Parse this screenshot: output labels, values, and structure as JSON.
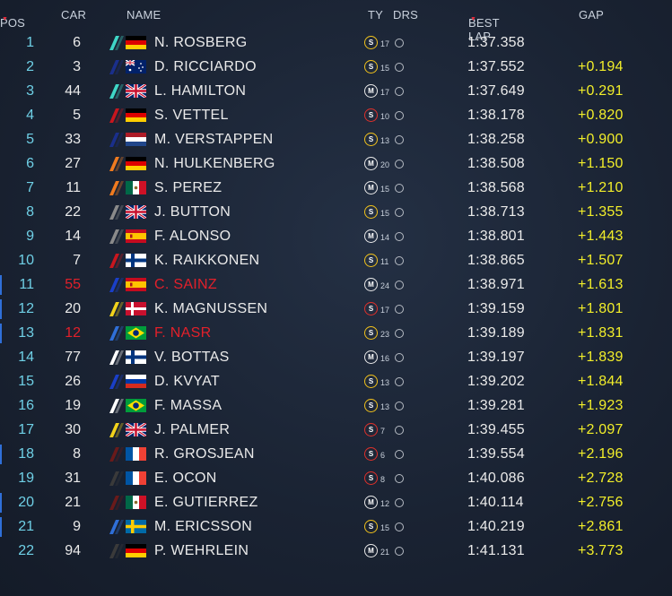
{
  "header": {
    "pos": "POS",
    "car": "CAR",
    "name": "NAME",
    "ty": "TY",
    "drs": "DRS",
    "best_lap": "BEST LAP",
    "gap": "GAP"
  },
  "colors": {
    "pos": "#6fd0e6",
    "gap": "#f2ee2a",
    "flagged": "#e2202a",
    "tyre_soft": "#f2c21b",
    "tyre_medium": "#eaeaea",
    "tyre_supersoft": "#e0302a"
  },
  "rows": [
    {
      "pos": "1",
      "car": "6",
      "name": "N. ROSBERG",
      "team_color": "#3fd6c6",
      "flag": "germany",
      "tyre": "S",
      "tyre_type": "soft",
      "tyre_laps": "17",
      "lap": "1:37.358",
      "gap": "",
      "highlight": false,
      "red": false
    },
    {
      "pos": "2",
      "car": "3",
      "name": "D. RICCIARDO",
      "team_color": "#1a2f8c",
      "flag": "australia",
      "tyre": "S",
      "tyre_type": "soft",
      "tyre_laps": "15",
      "lap": "1:37.552",
      "gap": "+0.194",
      "highlight": false,
      "red": false
    },
    {
      "pos": "3",
      "car": "44",
      "name": "L. HAMILTON",
      "team_color": "#3fd6c6",
      "flag": "uk",
      "tyre": "M",
      "tyre_type": "medium",
      "tyre_laps": "17",
      "lap": "1:37.649",
      "gap": "+0.291",
      "highlight": false,
      "red": false
    },
    {
      "pos": "4",
      "car": "5",
      "name": "S. VETTEL",
      "team_color": "#c8161e",
      "flag": "germany",
      "tyre": "S",
      "tyre_type": "supersoft",
      "tyre_laps": "10",
      "lap": "1:38.178",
      "gap": "+0.820",
      "highlight": false,
      "red": false
    },
    {
      "pos": "5",
      "car": "33",
      "name": "M. VERSTAPPEN",
      "team_color": "#1a2f8c",
      "flag": "netherlands",
      "tyre": "S",
      "tyre_type": "soft",
      "tyre_laps": "13",
      "lap": "1:38.258",
      "gap": "+0.900",
      "highlight": false,
      "red": false
    },
    {
      "pos": "6",
      "car": "27",
      "name": "N. HULKENBERG",
      "team_color": "#f07b1f",
      "flag": "germany",
      "tyre": "M",
      "tyre_type": "medium",
      "tyre_laps": "20",
      "lap": "1:38.508",
      "gap": "+1.150",
      "highlight": false,
      "red": false
    },
    {
      "pos": "7",
      "car": "11",
      "name": "S. PEREZ",
      "team_color": "#f07b1f",
      "flag": "mexico",
      "tyre": "M",
      "tyre_type": "medium",
      "tyre_laps": "15",
      "lap": "1:38.568",
      "gap": "+1.210",
      "highlight": false,
      "red": false
    },
    {
      "pos": "8",
      "car": "22",
      "name": "J. BUTTON",
      "team_color": "#8a8a8a",
      "flag": "uk",
      "tyre": "S",
      "tyre_type": "soft",
      "tyre_laps": "15",
      "lap": "1:38.713",
      "gap": "+1.355",
      "highlight": false,
      "red": false
    },
    {
      "pos": "9",
      "car": "14",
      "name": "F. ALONSO",
      "team_color": "#8a8a8a",
      "flag": "spain",
      "tyre": "M",
      "tyre_type": "medium",
      "tyre_laps": "14",
      "lap": "1:38.801",
      "gap": "+1.443",
      "highlight": false,
      "red": false
    },
    {
      "pos": "10",
      "car": "7",
      "name": "K. RAIKKONEN",
      "team_color": "#c8161e",
      "flag": "finland",
      "tyre": "S",
      "tyre_type": "soft",
      "tyre_laps": "11",
      "lap": "1:38.865",
      "gap": "+1.507",
      "highlight": false,
      "red": false
    },
    {
      "pos": "11",
      "car": "55",
      "name": "C. SAINZ",
      "team_color": "#1a3fc8",
      "flag": "spain",
      "tyre": "M",
      "tyre_type": "medium",
      "tyre_laps": "24",
      "lap": "1:38.971",
      "gap": "+1.613",
      "highlight": true,
      "red": true
    },
    {
      "pos": "12",
      "car": "20",
      "name": "K. MAGNUSSEN",
      "team_color": "#f2d21b",
      "flag": "denmark",
      "tyre": "S",
      "tyre_type": "supersoft",
      "tyre_laps": "17",
      "lap": "1:39.159",
      "gap": "+1.801",
      "highlight": true,
      "red": false
    },
    {
      "pos": "13",
      "car": "12",
      "name": "F. NASR",
      "team_color": "#2f6fd8",
      "flag": "brazil",
      "tyre": "S",
      "tyre_type": "soft",
      "tyre_laps": "23",
      "lap": "1:39.189",
      "gap": "+1.831",
      "highlight": true,
      "red": true
    },
    {
      "pos": "14",
      "car": "77",
      "name": "V. BOTTAS",
      "team_color": "#ffffff",
      "flag": "finland",
      "tyre": "M",
      "tyre_type": "medium",
      "tyre_laps": "16",
      "lap": "1:39.197",
      "gap": "+1.839",
      "highlight": false,
      "red": false
    },
    {
      "pos": "15",
      "car": "26",
      "name": "D. KVYAT",
      "team_color": "#1a3fc8",
      "flag": "russia",
      "tyre": "S",
      "tyre_type": "soft",
      "tyre_laps": "13",
      "lap": "1:39.202",
      "gap": "+1.844",
      "highlight": false,
      "red": false
    },
    {
      "pos": "16",
      "car": "19",
      "name": "F. MASSA",
      "team_color": "#ffffff",
      "flag": "brazil",
      "tyre": "S",
      "tyre_type": "soft",
      "tyre_laps": "13",
      "lap": "1:39.281",
      "gap": "+1.923",
      "highlight": false,
      "red": false
    },
    {
      "pos": "17",
      "car": "30",
      "name": "J. PALMER",
      "team_color": "#f2d21b",
      "flag": "uk",
      "tyre": "S",
      "tyre_type": "supersoft",
      "tyre_laps": "7",
      "lap": "1:39.455",
      "gap": "+2.097",
      "highlight": false,
      "red": false
    },
    {
      "pos": "18",
      "car": "8",
      "name": "R. GROSJEAN",
      "team_color": "#6a1a1a",
      "flag": "france",
      "tyre": "S",
      "tyre_type": "supersoft",
      "tyre_laps": "6",
      "lap": "1:39.554",
      "gap": "+2.196",
      "highlight": true,
      "red": false
    },
    {
      "pos": "19",
      "car": "31",
      "name": "E. OCON",
      "team_color": "#3a3a3a",
      "flag": "france",
      "tyre": "S",
      "tyre_type": "supersoft",
      "tyre_laps": "8",
      "lap": "1:40.086",
      "gap": "+2.728",
      "highlight": false,
      "red": false
    },
    {
      "pos": "20",
      "car": "21",
      "name": "E. GUTIERREZ",
      "team_color": "#6a1a1a",
      "flag": "mexico",
      "tyre": "M",
      "tyre_type": "medium",
      "tyre_laps": "12",
      "lap": "1:40.114",
      "gap": "+2.756",
      "highlight": true,
      "red": false
    },
    {
      "pos": "21",
      "car": "9",
      "name": "M. ERICSSON",
      "team_color": "#2f6fd8",
      "flag": "sweden",
      "tyre": "S",
      "tyre_type": "soft",
      "tyre_laps": "15",
      "lap": "1:40.219",
      "gap": "+2.861",
      "highlight": true,
      "red": false
    },
    {
      "pos": "22",
      "car": "94",
      "name": "P. WEHRLEIN",
      "team_color": "#3a3a3a",
      "flag": "germany",
      "tyre": "M",
      "tyre_type": "medium",
      "tyre_laps": "21",
      "lap": "1:41.131",
      "gap": "+3.773",
      "highlight": false,
      "red": false
    }
  ]
}
